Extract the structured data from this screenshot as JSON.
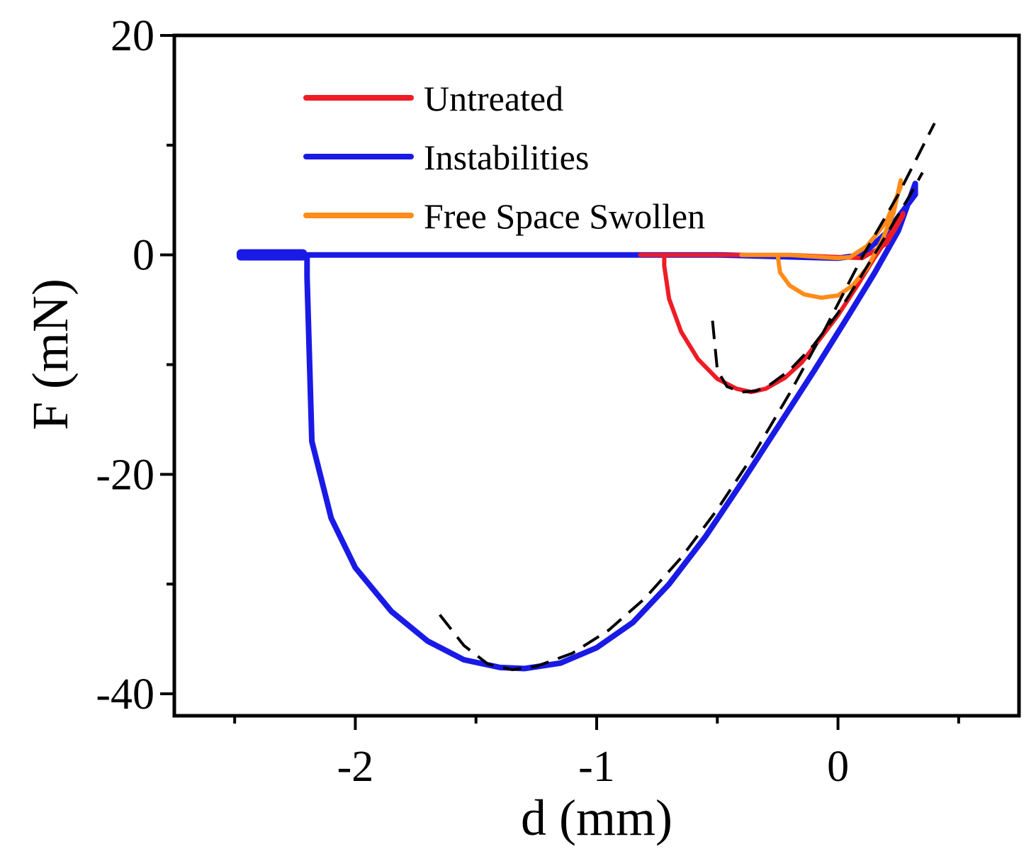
{
  "chart_data": {
    "type": "line",
    "title": "",
    "xlabel": "d (mm)",
    "ylabel": "F (mN)",
    "xlim": [
      -2.75,
      0.75
    ],
    "ylim": [
      -42,
      20
    ],
    "xticks": [
      -2,
      -1,
      0
    ],
    "xtick_labels": [
      "-2",
      "-1",
      "0"
    ],
    "yticks": [
      -40,
      -20,
      0,
      20
    ],
    "ytick_labels": [
      "-40",
      "-20",
      "0",
      "20"
    ],
    "legend_position": "top-left",
    "series": [
      {
        "name": "Untreated",
        "color": "#ee1c25",
        "x": [
          -0.82,
          -0.72,
          -0.72,
          -0.7,
          -0.65,
          -0.58,
          -0.5,
          -0.42,
          -0.36,
          -0.3,
          -0.22,
          -0.15,
          -0.08,
          0.0,
          0.08,
          0.15,
          0.22,
          0.27,
          0.27,
          0.2,
          0.1,
          0.0,
          -0.2,
          -0.5,
          -0.82
        ],
        "y": [
          0,
          0,
          -1,
          -4,
          -7,
          -9.5,
          -11.3,
          -12.2,
          -12.5,
          -12.2,
          -11.2,
          -9.8,
          -7.8,
          -5.5,
          -2.8,
          -0.3,
          2,
          3.8,
          3.6,
          1,
          -0.3,
          -0.2,
          0,
          0,
          0
        ]
      },
      {
        "name": "Instabilities",
        "color": "#1a1ae6",
        "x": [
          -2.48,
          -2.2,
          -2.2,
          -2.18,
          -2.1,
          -2.0,
          -1.85,
          -1.7,
          -1.55,
          -1.4,
          -1.3,
          -1.15,
          -1.0,
          -0.85,
          -0.7,
          -0.55,
          -0.4,
          -0.25,
          -0.1,
          0.05,
          0.15,
          0.25,
          0.32,
          0.32,
          0.2,
          0.1,
          0.0,
          -0.5,
          -1.0,
          -1.5,
          -2.0,
          -2.48
        ],
        "y": [
          0,
          0,
          -2,
          -17,
          -24,
          -28.5,
          -32.5,
          -35.2,
          -36.9,
          -37.6,
          -37.7,
          -37.2,
          -35.8,
          -33.5,
          -30.0,
          -25.7,
          -20.8,
          -15.7,
          -10.6,
          -5.3,
          -1.7,
          2.2,
          6.5,
          5.5,
          2.0,
          0.0,
          -0.3,
          0,
          0,
          0,
          0,
          0
        ]
      },
      {
        "name": "Free Space Swollen",
        "color": "#ff8c1a",
        "x": [
          -0.4,
          -0.25,
          -0.24,
          -0.2,
          -0.14,
          -0.07,
          0.0,
          0.06,
          0.12,
          0.18,
          0.23,
          0.26,
          0.26,
          0.2,
          0.12,
          0.05,
          0.0,
          -0.2,
          -0.4
        ],
        "y": [
          0,
          0,
          -1.6,
          -2.8,
          -3.6,
          -3.9,
          -3.7,
          -2.8,
          -1.2,
          1.2,
          3.8,
          6.8,
          6.2,
          3.0,
          0.8,
          -0.2,
          -0.3,
          0,
          0
        ]
      }
    ],
    "fits": [
      {
        "name": "fit-instabilities",
        "style": "dashed",
        "color": "#000000",
        "x": [
          -1.65,
          -1.55,
          -1.45,
          -1.35,
          -1.25,
          -1.1,
          -0.95,
          -0.8,
          -0.65,
          -0.5,
          -0.35,
          -0.2,
          -0.05,
          0.1,
          0.25,
          0.4
        ],
        "y": [
          -32.8,
          -35.6,
          -37.3,
          -37.8,
          -37.5,
          -36.3,
          -34.2,
          -31.3,
          -27.6,
          -23.2,
          -18.2,
          -12.6,
          -6.6,
          -0.2,
          5.5,
          12
        ]
      },
      {
        "name": "fit-untreated",
        "style": "dashed",
        "color": "#000000",
        "x": [
          -0.52,
          -0.5,
          -0.46,
          -0.4,
          -0.34,
          -0.28,
          -0.2,
          -0.1,
          0.0,
          0.1,
          0.2,
          0.3,
          0.35
        ],
        "y": [
          -6,
          -10.5,
          -12.0,
          -12.5,
          -12.4,
          -11.8,
          -10.5,
          -8.2,
          -5.3,
          -1.8,
          1.8,
          5.5,
          7.5
        ]
      }
    ]
  }
}
